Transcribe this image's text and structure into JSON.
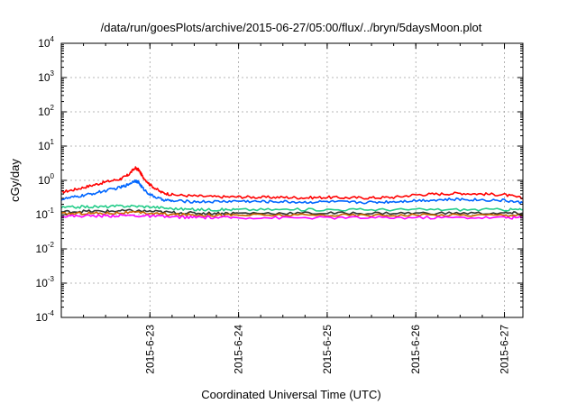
{
  "chart_data": {
    "type": "line",
    "title": "/data/run/goesPlots/archive/2015-06-27/05:00/flux/../bryn/5daysMoon.plot",
    "xlabel": "Coordinated Universal Time (UTC)",
    "ylabel": "cGy/day",
    "yscale": "log",
    "ylim": [
      0.0001,
      10000
    ],
    "yticks": [
      {
        "base": "10",
        "exp": "-4",
        "value": 0.0001
      },
      {
        "base": "10",
        "exp": "-3",
        "value": 0.001
      },
      {
        "base": "10",
        "exp": "-2",
        "value": 0.01
      },
      {
        "base": "10",
        "exp": "-1",
        "value": 0.1
      },
      {
        "base": "10",
        "exp": "0",
        "value": 1
      },
      {
        "base": "10",
        "exp": "1",
        "value": 10
      },
      {
        "base": "10",
        "exp": "2",
        "value": 100
      },
      {
        "base": "10",
        "exp": "3",
        "value": 1000
      },
      {
        "base": "10",
        "exp": "4",
        "value": 10000
      }
    ],
    "xlim": [
      "2015-06-22 00:00",
      "2015-06-27 05:00"
    ],
    "xticks": [
      {
        "label": "2015-6-23",
        "value": "2015-06-23"
      },
      {
        "label": "2015-6-24",
        "value": "2015-06-24"
      },
      {
        "label": "2015-6-25",
        "value": "2015-06-25"
      },
      {
        "label": "2015-6-26",
        "value": "2015-06-26"
      },
      {
        "label": "2015-6-27",
        "value": "2015-06-27"
      }
    ],
    "grid": true,
    "legend": "none",
    "series": [
      {
        "color": "#ff0000",
        "x": [
          "2015-06-22 00:00",
          "2015-06-22 04:00",
          "2015-06-22 08:00",
          "2015-06-22 12:00",
          "2015-06-22 16:00",
          "2015-06-22 18:00",
          "2015-06-22 20:00",
          "2015-06-22 21:00",
          "2015-06-22 22:00",
          "2015-06-23 00:00",
          "2015-06-23 03:00",
          "2015-06-23 06:00",
          "2015-06-23 12:00",
          "2015-06-23 18:00",
          "2015-06-24 00:00",
          "2015-06-24 06:00",
          "2015-06-24 12:00",
          "2015-06-24 18:00",
          "2015-06-25 00:00",
          "2015-06-25 06:00",
          "2015-06-25 12:00",
          "2015-06-25 18:00",
          "2015-06-26 00:00",
          "2015-06-26 06:00",
          "2015-06-26 12:00",
          "2015-06-26 18:00",
          "2015-06-27 00:00",
          "2015-06-27 05:00"
        ],
        "y": [
          0.45,
          0.55,
          0.7,
          0.9,
          1.1,
          1.4,
          2.3,
          2.0,
          1.3,
          0.75,
          0.45,
          0.38,
          0.35,
          0.33,
          0.33,
          0.32,
          0.32,
          0.31,
          0.32,
          0.31,
          0.31,
          0.32,
          0.38,
          0.4,
          0.42,
          0.4,
          0.38,
          0.3
        ]
      },
      {
        "color": "#0066ff",
        "x": [
          "2015-06-22 00:00",
          "2015-06-22 04:00",
          "2015-06-22 08:00",
          "2015-06-22 12:00",
          "2015-06-22 16:00",
          "2015-06-22 18:00",
          "2015-06-22 20:00",
          "2015-06-22 21:00",
          "2015-06-22 22:00",
          "2015-06-23 00:00",
          "2015-06-23 03:00",
          "2015-06-23 06:00",
          "2015-06-23 12:00",
          "2015-06-23 18:00",
          "2015-06-24 00:00",
          "2015-06-24 06:00",
          "2015-06-24 12:00",
          "2015-06-24 18:00",
          "2015-06-25 00:00",
          "2015-06-25 06:00",
          "2015-06-25 12:00",
          "2015-06-25 18:00",
          "2015-06-26 00:00",
          "2015-06-26 06:00",
          "2015-06-26 12:00",
          "2015-06-26 18:00",
          "2015-06-27 00:00",
          "2015-06-27 05:00"
        ],
        "y": [
          0.28,
          0.33,
          0.4,
          0.5,
          0.62,
          0.75,
          1.0,
          0.85,
          0.6,
          0.38,
          0.28,
          0.25,
          0.24,
          0.24,
          0.25,
          0.24,
          0.24,
          0.23,
          0.24,
          0.23,
          0.23,
          0.24,
          0.26,
          0.27,
          0.28,
          0.27,
          0.26,
          0.22
        ]
      },
      {
        "color": "#22cc88",
        "x": [
          "2015-06-22 00:00",
          "2015-06-22 06:00",
          "2015-06-22 12:00",
          "2015-06-22 18:00",
          "2015-06-23 00:00",
          "2015-06-23 06:00",
          "2015-06-23 12:00",
          "2015-06-23 18:00",
          "2015-06-24 00:00",
          "2015-06-24 12:00",
          "2015-06-25 00:00",
          "2015-06-25 12:00",
          "2015-06-26 00:00",
          "2015-06-26 12:00",
          "2015-06-27 00:00",
          "2015-06-27 05:00"
        ],
        "y": [
          0.16,
          0.17,
          0.17,
          0.18,
          0.17,
          0.15,
          0.14,
          0.14,
          0.14,
          0.14,
          0.14,
          0.14,
          0.14,
          0.14,
          0.14,
          0.14
        ]
      },
      {
        "color": "#333333",
        "x": [
          "2015-06-22 00:00",
          "2015-06-22 06:00",
          "2015-06-22 12:00",
          "2015-06-22 18:00",
          "2015-06-23 00:00",
          "2015-06-23 06:00",
          "2015-06-23 12:00",
          "2015-06-23 18:00",
          "2015-06-24 00:00",
          "2015-06-24 12:00",
          "2015-06-25 00:00",
          "2015-06-25 12:00",
          "2015-06-26 00:00",
          "2015-06-26 12:00",
          "2015-06-27 00:00",
          "2015-06-27 05:00"
        ],
        "y": [
          0.12,
          0.125,
          0.125,
          0.13,
          0.125,
          0.115,
          0.11,
          0.11,
          0.11,
          0.11,
          0.11,
          0.11,
          0.11,
          0.11,
          0.11,
          0.11
        ]
      },
      {
        "color": "#cc6600",
        "x": [
          "2015-06-22 00:00",
          "2015-06-22 06:00",
          "2015-06-22 12:00",
          "2015-06-22 18:00",
          "2015-06-23 00:00",
          "2015-06-23 06:00",
          "2015-06-23 12:00",
          "2015-06-23 18:00",
          "2015-06-24 00:00",
          "2015-06-24 12:00",
          "2015-06-25 00:00",
          "2015-06-25 12:00",
          "2015-06-26 00:00",
          "2015-06-26 12:00",
          "2015-06-27 00:00",
          "2015-06-27 05:00"
        ],
        "y": [
          0.105,
          0.11,
          0.11,
          0.115,
          0.11,
          0.1,
          0.098,
          0.097,
          0.097,
          0.096,
          0.096,
          0.096,
          0.097,
          0.097,
          0.097,
          0.097
        ]
      },
      {
        "color": "#ff00ff",
        "x": [
          "2015-06-22 00:00",
          "2015-06-22 06:00",
          "2015-06-22 12:00",
          "2015-06-22 18:00",
          "2015-06-23 00:00",
          "2015-06-23 06:00",
          "2015-06-23 12:00",
          "2015-06-23 18:00",
          "2015-06-24 00:00",
          "2015-06-24 12:00",
          "2015-06-25 00:00",
          "2015-06-25 12:00",
          "2015-06-26 00:00",
          "2015-06-26 12:00",
          "2015-06-27 00:00",
          "2015-06-27 05:00"
        ],
        "y": [
          0.09,
          0.092,
          0.092,
          0.095,
          0.09,
          0.085,
          0.083,
          0.082,
          0.082,
          0.081,
          0.081,
          0.081,
          0.082,
          0.082,
          0.082,
          0.082
        ]
      }
    ]
  }
}
